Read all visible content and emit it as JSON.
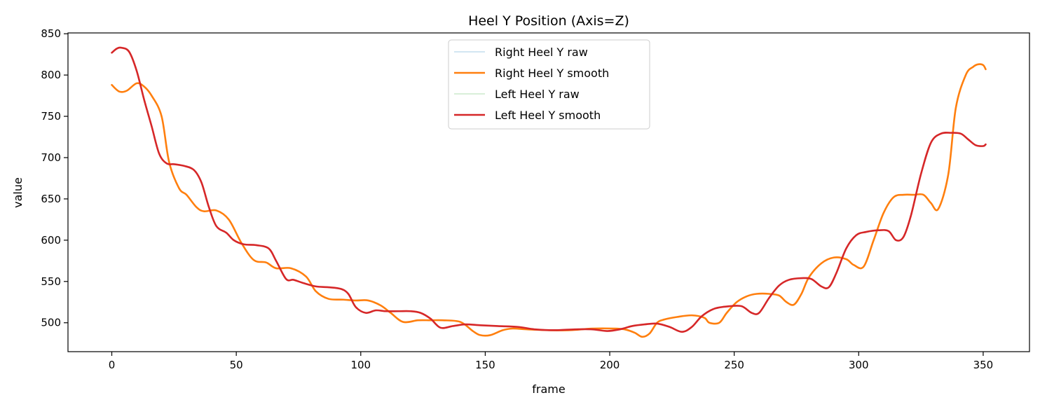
{
  "chart_data": {
    "type": "line",
    "title": "Heel Y Position (Axis=Z)",
    "xlabel": "frame",
    "ylabel": "value",
    "xlim": [
      -17.6,
      368.6
    ],
    "ylim": [
      465,
      851
    ],
    "xticks": [
      0,
      50,
      100,
      150,
      200,
      250,
      300,
      350
    ],
    "yticks": [
      500,
      550,
      600,
      650,
      700,
      750,
      800,
      850
    ],
    "grid": false,
    "legend_position": "upper center",
    "series": [
      {
        "name": "Right Heel Y raw",
        "color": "#a6cee3",
        "linewidth": 1.2,
        "opacity": 0.8,
        "x": [
          0,
          3,
          6,
          10,
          13,
          16,
          20,
          23,
          27,
          30,
          34,
          37,
          42,
          47,
          52,
          57,
          62,
          66,
          72,
          78,
          82,
          87,
          93,
          98,
          103,
          108,
          112,
          117,
          123,
          128,
          133,
          140,
          145,
          148,
          152,
          157,
          161,
          167,
          175,
          184,
          193,
          202,
          206,
          210,
          213,
          216,
          219,
          222,
          227,
          233,
          238,
          240,
          244,
          247,
          251,
          255,
          259,
          264,
          268,
          271,
          274,
          277,
          280,
          285,
          290,
          295,
          298,
          302,
          306,
          310,
          314,
          318,
          322,
          326,
          329,
          332,
          336,
          339,
          343,
          346,
          348,
          350,
          351
        ],
        "values": [
          788,
          780,
          781,
          790,
          786,
          775,
          750,
          695,
          663,
          655,
          640,
          635,
          636,
          625,
          597,
          576,
          573,
          566,
          566,
          556,
          538,
          529,
          528,
          527,
          527,
          521,
          512,
          501,
          503,
          503,
          503,
          501,
          490,
          485,
          485,
          491,
          493,
          492,
          491,
          491,
          493,
          493,
          492,
          488,
          483,
          487,
          500,
          504,
          507,
          509,
          506,
          500,
          500,
          512,
          525,
          532,
          535,
          535,
          533,
          525,
          522,
          535,
          555,
          572,
          579,
          577,
          570,
          568,
          600,
          633,
          652,
          655,
          655,
          655,
          645,
          638,
          680,
          760,
          800,
          810,
          813,
          812,
          807
        ]
      },
      {
        "name": "Right Heel Y smooth",
        "color": "#ff7f0e",
        "linewidth": 2.6,
        "opacity": 1,
        "x": [
          0,
          3,
          6,
          10,
          13,
          16,
          20,
          23,
          27,
          30,
          34,
          37,
          42,
          47,
          52,
          57,
          62,
          66,
          72,
          78,
          82,
          87,
          93,
          98,
          103,
          108,
          112,
          117,
          123,
          128,
          133,
          140,
          145,
          148,
          152,
          157,
          161,
          167,
          175,
          184,
          193,
          202,
          206,
          210,
          213,
          216,
          219,
          222,
          227,
          233,
          238,
          240,
          244,
          247,
          251,
          255,
          259,
          264,
          268,
          271,
          274,
          277,
          280,
          285,
          290,
          295,
          298,
          302,
          306,
          310,
          314,
          318,
          322,
          326,
          329,
          332,
          336,
          339,
          343,
          346,
          348,
          350,
          351
        ],
        "values": [
          788,
          780,
          781,
          790,
          786,
          775,
          750,
          695,
          663,
          655,
          640,
          635,
          636,
          625,
          597,
          576,
          573,
          566,
          566,
          556,
          538,
          529,
          528,
          527,
          527,
          521,
          512,
          501,
          503,
          503,
          503,
          501,
          490,
          485,
          485,
          491,
          493,
          492,
          491,
          491,
          493,
          493,
          492,
          488,
          483,
          487,
          500,
          504,
          507,
          509,
          506,
          500,
          500,
          512,
          525,
          532,
          535,
          535,
          533,
          525,
          522,
          535,
          555,
          572,
          579,
          577,
          570,
          568,
          600,
          633,
          652,
          655,
          655,
          655,
          645,
          638,
          680,
          760,
          800,
          810,
          813,
          812,
          807
        ]
      },
      {
        "name": "Left Heel Y raw",
        "color": "#b2dfb0",
        "linewidth": 1.2,
        "opacity": 0.8,
        "x": [
          0,
          2,
          4,
          7,
          10,
          13,
          16,
          19,
          22,
          25,
          29,
          33,
          36,
          39,
          42,
          46,
          49,
          53,
          58,
          63,
          66,
          70,
          73,
          77,
          82,
          87,
          92,
          95,
          98,
          102,
          106,
          110,
          115,
          120,
          124,
          128,
          132,
          137,
          142,
          148,
          155,
          163,
          170,
          178,
          186,
          193,
          199,
          204,
          209,
          214,
          219,
          224,
          229,
          233,
          237,
          242,
          248,
          253,
          257,
          260,
          264,
          268,
          272,
          277,
          281,
          285,
          288,
          291,
          295,
          299,
          303,
          308,
          312,
          315,
          318,
          321,
          325,
          329,
          333,
          337,
          341,
          344,
          347,
          350,
          351
        ],
        "values": [
          827,
          832,
          833,
          828,
          805,
          770,
          738,
          705,
          693,
          692,
          690,
          685,
          670,
          640,
          617,
          609,
          600,
          595,
          594,
          590,
          575,
          553,
          552,
          548,
          544,
          543,
          541,
          535,
          519,
          512,
          515,
          514,
          514,
          514,
          512,
          505,
          494,
          496,
          498,
          497,
          496,
          495,
          492,
          491,
          492,
          492,
          490,
          492,
          496,
          498,
          499,
          495,
          489,
          495,
          508,
          517,
          520,
          520,
          512,
          512,
          530,
          545,
          552,
          554,
          553,
          544,
          543,
          560,
          590,
          606,
          610,
          612,
          611,
          600,
          604,
          630,
          680,
          718,
          729,
          730,
          729,
          722,
          715,
          714,
          716
        ]
      },
      {
        "name": "Left Heel Y smooth",
        "color": "#d62728",
        "linewidth": 2.6,
        "opacity": 1,
        "x": [
          0,
          2,
          4,
          7,
          10,
          13,
          16,
          19,
          22,
          25,
          29,
          33,
          36,
          39,
          42,
          46,
          49,
          53,
          58,
          63,
          66,
          70,
          73,
          77,
          82,
          87,
          92,
          95,
          98,
          102,
          106,
          110,
          115,
          120,
          124,
          128,
          132,
          137,
          142,
          148,
          155,
          163,
          170,
          178,
          186,
          193,
          199,
          204,
          209,
          214,
          219,
          224,
          229,
          233,
          237,
          242,
          248,
          253,
          257,
          260,
          264,
          268,
          272,
          277,
          281,
          285,
          288,
          291,
          295,
          299,
          303,
          308,
          312,
          315,
          318,
          321,
          325,
          329,
          333,
          337,
          341,
          344,
          347,
          350,
          351
        ],
        "values": [
          827,
          832,
          833,
          828,
          805,
          770,
          738,
          705,
          693,
          692,
          690,
          685,
          670,
          640,
          617,
          609,
          600,
          595,
          594,
          590,
          575,
          553,
          552,
          548,
          544,
          543,
          541,
          535,
          519,
          512,
          515,
          514,
          514,
          514,
          512,
          505,
          494,
          496,
          498,
          497,
          496,
          495,
          492,
          491,
          492,
          492,
          490,
          492,
          496,
          498,
          499,
          495,
          489,
          495,
          508,
          517,
          520,
          520,
          512,
          512,
          530,
          545,
          552,
          554,
          553,
          544,
          543,
          560,
          590,
          606,
          610,
          612,
          611,
          600,
          604,
          630,
          680,
          718,
          729,
          730,
          729,
          722,
          715,
          714,
          716
        ]
      }
    ]
  }
}
